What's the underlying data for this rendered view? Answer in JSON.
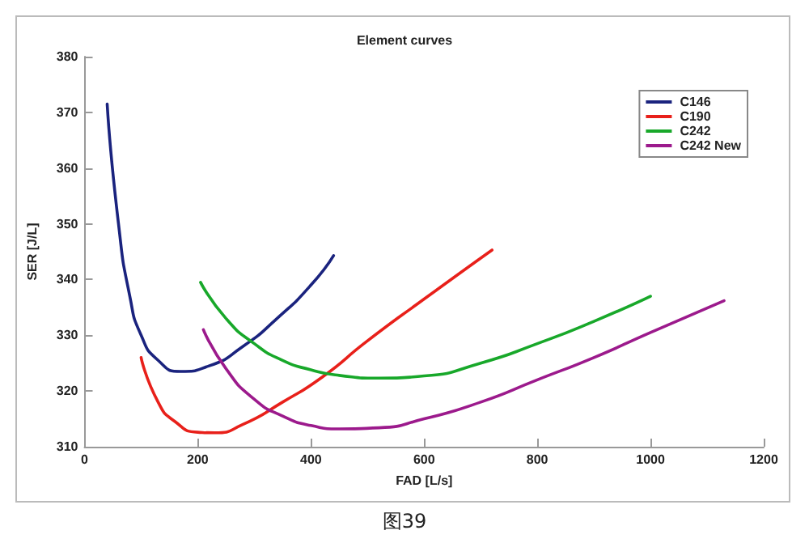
{
  "chart_data": {
    "type": "line",
    "title": "Element curves",
    "xlabel": "FAD [L/s]",
    "ylabel": "SER [J/L]",
    "annotations": [
      "图39"
    ],
    "xlim": [
      0,
      1200
    ],
    "xticks": [
      0,
      200,
      400,
      600,
      800,
      1000,
      1200
    ],
    "ylim": [
      310,
      380
    ],
    "yticks": [
      310,
      320,
      330,
      340,
      350,
      360,
      370,
      380
    ],
    "grid": false,
    "legend": "top right",
    "marker": "none",
    "line_style": "solid",
    "series": [
      {
        "name": "C146",
        "color": "#1a237e",
        "x": [
          40,
          60,
          80,
          100,
          130,
          170,
          220,
          280,
          340,
          400,
          440
        ],
        "values": [
          371.5,
          350,
          337,
          330,
          325.5,
          323.5,
          324.5,
          328,
          333,
          339,
          344.3
        ]
      },
      {
        "name": "C190",
        "color": "#e8201a",
        "x": [
          100,
          130,
          160,
          200,
          230,
          280,
          350,
          420,
          500,
          600,
          720
        ],
        "values": [
          326,
          318,
          314.5,
          312.6,
          312.5,
          314,
          318,
          322.5,
          329,
          336.5,
          345.3
        ]
      },
      {
        "name": "C242",
        "color": "#18a82a",
        "x": [
          205,
          250,
          300,
          350,
          400,
          450,
          520,
          600,
          700,
          800,
          900,
          1000
        ],
        "values": [
          339.5,
          333,
          328.5,
          325.5,
          323.8,
          322.8,
          322.3,
          322.7,
          325,
          328.5,
          332.5,
          337
        ]
      },
      {
        "name": "C242 New",
        "color": "#9c1a8c",
        "x": [
          210,
          250,
          300,
          350,
          400,
          450,
          520,
          600,
          700,
          800,
          900,
          1000,
          1130
        ],
        "values": [
          331,
          324,
          318.5,
          315.5,
          313.8,
          313.2,
          313.4,
          315,
          318,
          322,
          326,
          330.5,
          336.2
        ]
      }
    ]
  }
}
